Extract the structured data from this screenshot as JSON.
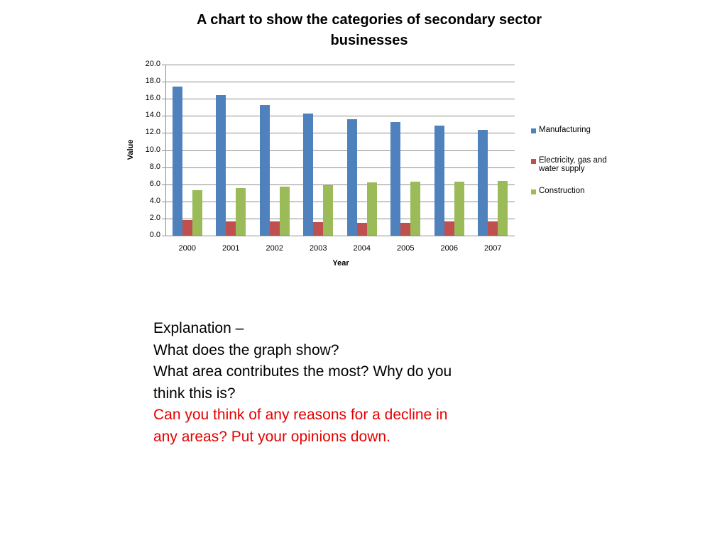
{
  "chart_data": {
    "type": "bar",
    "title": "A chart to show the categories of secondary sector businesses",
    "title_lines": [
      "A chart to show the categories of secondary sector",
      "businesses"
    ],
    "xlabel": "Year",
    "ylabel": "Value",
    "ylim": [
      0,
      20
    ],
    "yticks": [
      "0.0",
      "2.0",
      "4.0",
      "6.0",
      "8.0",
      "10.0",
      "12.0",
      "14.0",
      "16.0",
      "18.0",
      "20.0"
    ],
    "grid": true,
    "legend_position": "right",
    "categories": [
      "2000",
      "2001",
      "2002",
      "2003",
      "2004",
      "2005",
      "2006",
      "2007"
    ],
    "series": [
      {
        "name": "Manufacturing",
        "color": "#4f81bd",
        "values": [
          17.4,
          16.4,
          15.3,
          14.3,
          13.6,
          13.3,
          12.9,
          12.4
        ]
      },
      {
        "name": "Electricity, gas and water supply",
        "color": "#c0504d",
        "values": [
          1.8,
          1.7,
          1.7,
          1.6,
          1.5,
          1.5,
          1.7,
          1.7
        ]
      },
      {
        "name": "Construction",
        "color": "#9bbb59",
        "values": [
          5.3,
          5.6,
          5.7,
          5.9,
          6.2,
          6.3,
          6.3,
          6.4
        ]
      }
    ]
  },
  "legend": {
    "items": [
      {
        "lines": [
          "Manufacturing"
        ]
      },
      {
        "lines": [
          "Electricity, gas and",
          "water supply"
        ]
      },
      {
        "lines": [
          "Construction"
        ]
      }
    ]
  },
  "text": {
    "line1": "Explanation –",
    "line2": "What does the graph show?",
    "line3": "What area contributes the most? Why do you",
    "line4": "think this is?",
    "line5": "Can you think of any reasons for a decline in",
    "line6": "any areas? Put your opinions down."
  }
}
